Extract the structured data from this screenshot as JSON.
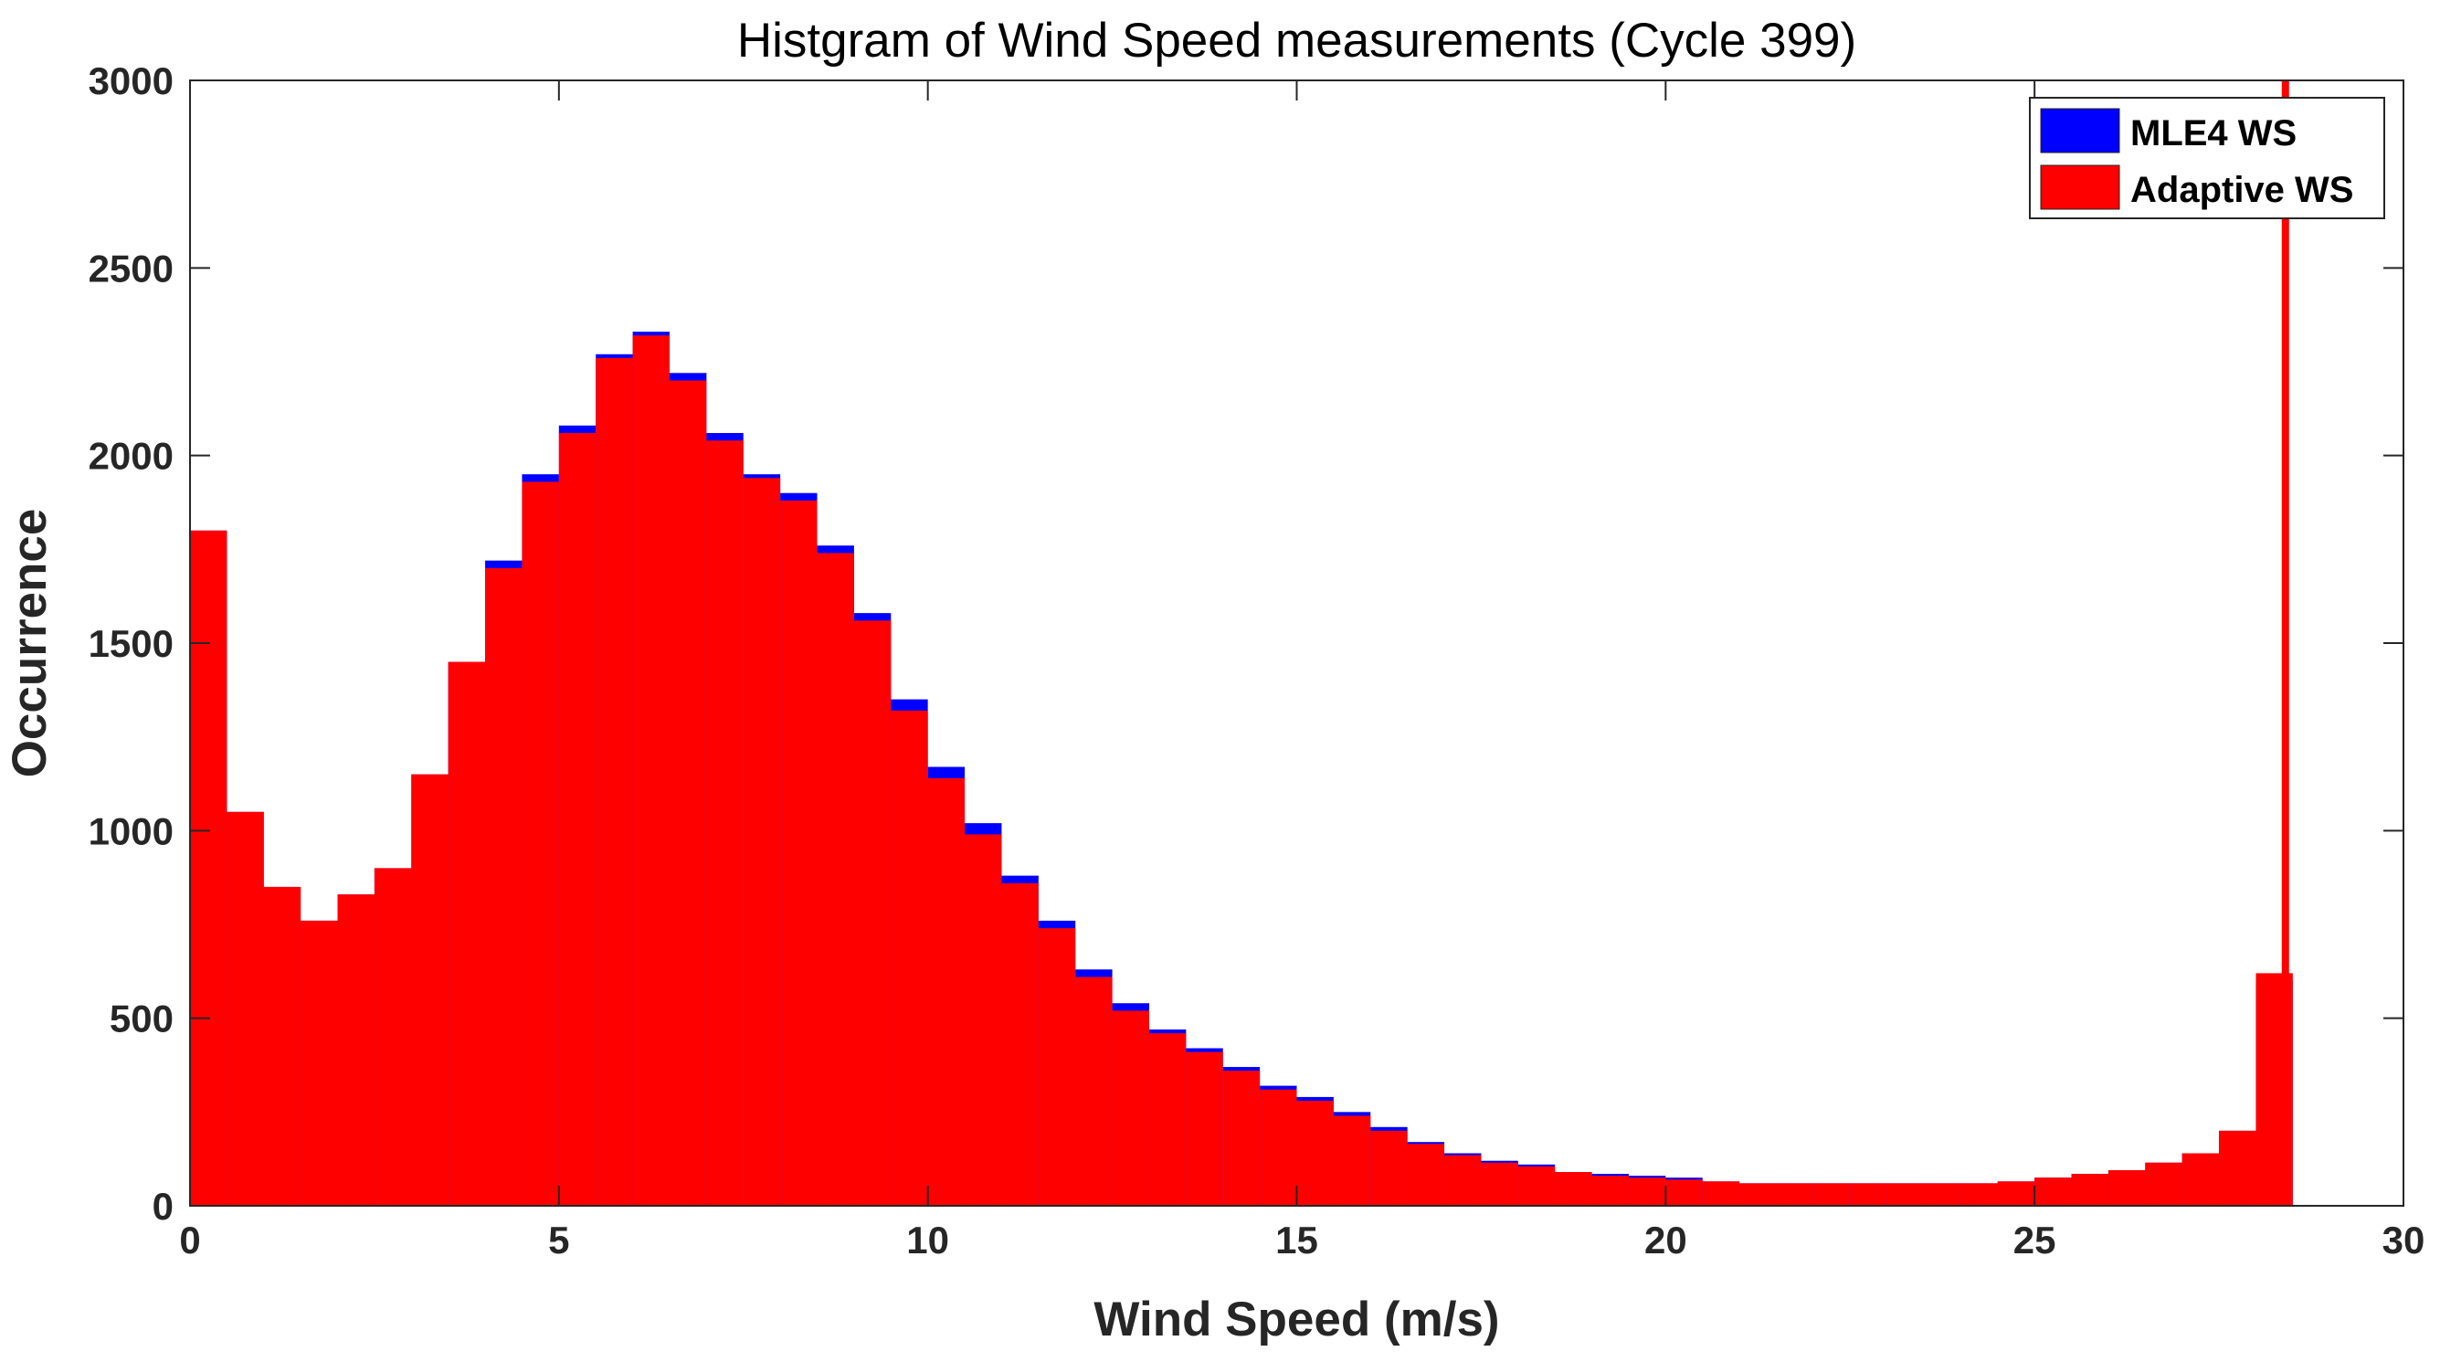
{
  "chart_data": {
    "type": "bar",
    "title": "Histgram of Wind Speed measurements (Cycle 399)",
    "xlabel": "Wind Speed (m/s)",
    "ylabel": "Occurrence",
    "xlim": [
      0,
      30
    ],
    "ylim": [
      0,
      3000
    ],
    "xticks": [
      "0",
      "5",
      "10",
      "15",
      "20",
      "25",
      "30"
    ],
    "yticks": [
      "0",
      "500",
      "1000",
      "1500",
      "2000",
      "2500",
      "3000"
    ],
    "grid": false,
    "legend_position": "top-right",
    "bin_width": 0.5,
    "series": [
      {
        "name": "MLE4 WS",
        "color": "#0000ff",
        "x": [
          0.25,
          0.75,
          1.25,
          1.75,
          2.25,
          2.75,
          3.25,
          3.75,
          4.25,
          4.75,
          5.25,
          5.75,
          6.25,
          6.75,
          7.25,
          7.75,
          8.25,
          8.75,
          9.25,
          9.75,
          10.25,
          10.75,
          11.25,
          11.75,
          12.25,
          12.75,
          13.25,
          13.75,
          14.25,
          14.75,
          15.25,
          15.75,
          16.25,
          16.75,
          17.25,
          17.75,
          18.25,
          18.75,
          19.25,
          19.75,
          20.25,
          20.75,
          21.25,
          21.75,
          22.25,
          22.75,
          23.25,
          23.75,
          24.25,
          24.75,
          25.25,
          25.75,
          26.25,
          26.75,
          27.25,
          27.75,
          28.25
        ],
        "values": [
          1800,
          1050,
          850,
          760,
          830,
          900,
          1150,
          1450,
          1720,
          1950,
          2080,
          2270,
          2330,
          2220,
          2060,
          1950,
          1900,
          1760,
          1580,
          1350,
          1170,
          1020,
          880,
          760,
          630,
          540,
          470,
          420,
          370,
          320,
          290,
          250,
          210,
          170,
          140,
          120,
          110,
          90,
          85,
          80,
          75,
          65,
          60,
          60,
          60,
          60,
          60,
          60,
          60,
          65,
          75,
          85,
          95,
          115,
          140,
          200,
          600
        ]
      },
      {
        "name": "Adaptive WS",
        "color": "#ff0000",
        "x": [
          0.25,
          0.75,
          1.25,
          1.75,
          2.25,
          2.75,
          3.25,
          3.75,
          4.25,
          4.75,
          5.25,
          5.75,
          6.25,
          6.75,
          7.25,
          7.75,
          8.25,
          8.75,
          9.25,
          9.75,
          10.25,
          10.75,
          11.25,
          11.75,
          12.25,
          12.75,
          13.25,
          13.75,
          14.25,
          14.75,
          15.25,
          15.75,
          16.25,
          16.75,
          17.25,
          17.75,
          18.25,
          18.75,
          19.25,
          19.75,
          20.25,
          20.75,
          21.25,
          21.75,
          22.25,
          22.75,
          23.25,
          23.75,
          24.25,
          24.75,
          25.25,
          25.75,
          26.25,
          26.75,
          27.25,
          27.75,
          28.25
        ],
        "values": [
          1800,
          1050,
          850,
          760,
          830,
          900,
          1150,
          1450,
          1700,
          1930,
          2060,
          2260,
          2320,
          2200,
          2040,
          1940,
          1880,
          1740,
          1560,
          1320,
          1140,
          990,
          860,
          740,
          610,
          520,
          460,
          410,
          360,
          310,
          280,
          240,
          200,
          165,
          135,
          115,
          105,
          90,
          80,
          75,
          70,
          65,
          60,
          60,
          60,
          60,
          60,
          60,
          60,
          65,
          75,
          85,
          95,
          115,
          140,
          200,
          620
        ]
      }
    ],
    "spike": {
      "x": 28.4,
      "value": 3000
    },
    "outline_color": "#262626"
  }
}
